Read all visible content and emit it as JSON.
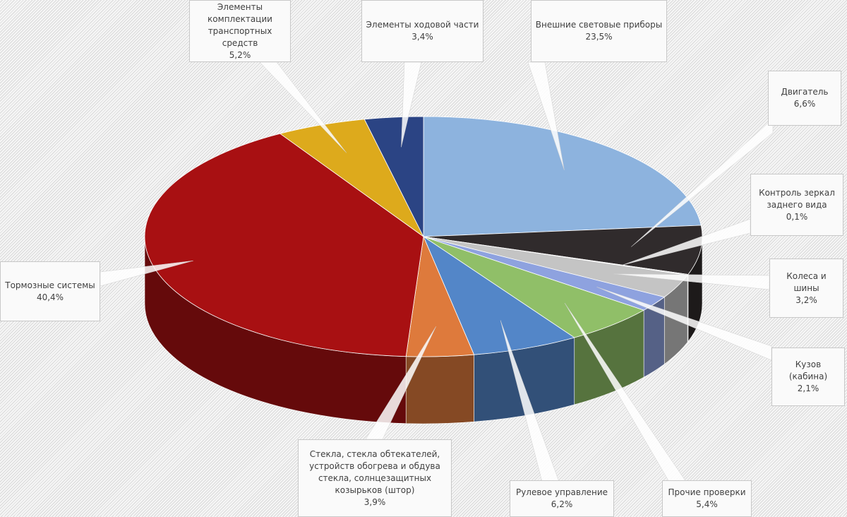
{
  "chart_data": {
    "type": "pie",
    "variant": "3d",
    "title": "",
    "start": "top",
    "direction": "clockwise",
    "slices": [
      {
        "label": "Внешние световые приборы",
        "value": 23.5,
        "value_label": "23,5%",
        "color": "#8db3de"
      },
      {
        "label": "Двигатель",
        "value": 6.6,
        "value_label": "6,6%",
        "color": "#302b2c"
      },
      {
        "label": "Контроль зеркал заднего вида",
        "value": 0.1,
        "value_label": "0,1%",
        "color": "#9a9a9a"
      },
      {
        "label": "Колеса и шины",
        "value": 3.2,
        "value_label": "3,2%",
        "color": "#c4c4c4"
      },
      {
        "label": "Кузов (кабина)",
        "value": 2.1,
        "value_label": "2,1%",
        "color": "#8ea2df"
      },
      {
        "label": "Прочие проверки",
        "value": 5.4,
        "value_label": "5,4%",
        "color": "#90bf68"
      },
      {
        "label": "Рулевое управление",
        "value": 6.2,
        "value_label": "6,2%",
        "color": "#5386c8"
      },
      {
        "label": "Стекла, стекла обтекателей, устройств обогрева и обдува стекла, солнцезащитных козырьков (штор)",
        "value": 3.9,
        "value_label": "3,9%",
        "color": "#de7a3c"
      },
      {
        "label": "Тормозные системы",
        "value": 40.4,
        "value_label": "40,4%",
        "color": "#a81012"
      },
      {
        "label": "Элементы комплектации транспортных средств",
        "value": 5.2,
        "value_label": "5,2%",
        "color": "#ddaa1c"
      },
      {
        "label": "Элементы ходовой части",
        "value": 3.4,
        "value_label": "3,4%",
        "color": "#2b4484"
      }
    ]
  }
}
